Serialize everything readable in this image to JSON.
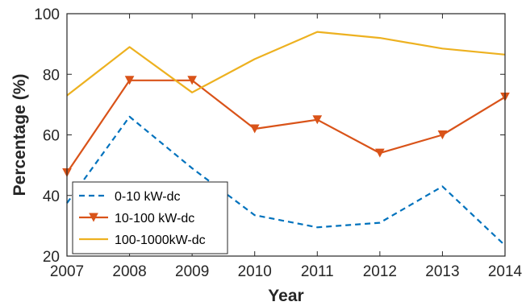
{
  "chart_data": {
    "type": "line",
    "title": "",
    "xlabel": "Year",
    "ylabel": "Percentage (%)",
    "x": [
      2007,
      2008,
      2009,
      2010,
      2011,
      2012,
      2013,
      2014
    ],
    "xlim": [
      2007,
      2014
    ],
    "ylim": [
      20,
      100
    ],
    "xticks": [
      2007,
      2008,
      2009,
      2010,
      2011,
      2012,
      2013,
      2014
    ],
    "yticks": [
      20,
      40,
      60,
      80,
      100
    ],
    "grid": false,
    "legend_position": "bottom-left",
    "series": [
      {
        "name": "0-10 kW-dc",
        "color": "#0072BD",
        "style": "dashed",
        "marker": "none",
        "values": [
          37.5,
          66,
          49,
          33.5,
          29.5,
          31,
          43,
          23.5
        ]
      },
      {
        "name": "10-100 kW-dc",
        "color": "#D95319",
        "style": "solid",
        "marker": "triangle-down",
        "values": [
          47.5,
          78,
          78,
          62,
          65,
          54,
          60,
          72.5
        ]
      },
      {
        "name": "100-1000kW-dc",
        "color": "#EDB120",
        "style": "solid",
        "marker": "none",
        "values": [
          73,
          89,
          74,
          85,
          94,
          92,
          88.5,
          86.5
        ]
      }
    ]
  }
}
